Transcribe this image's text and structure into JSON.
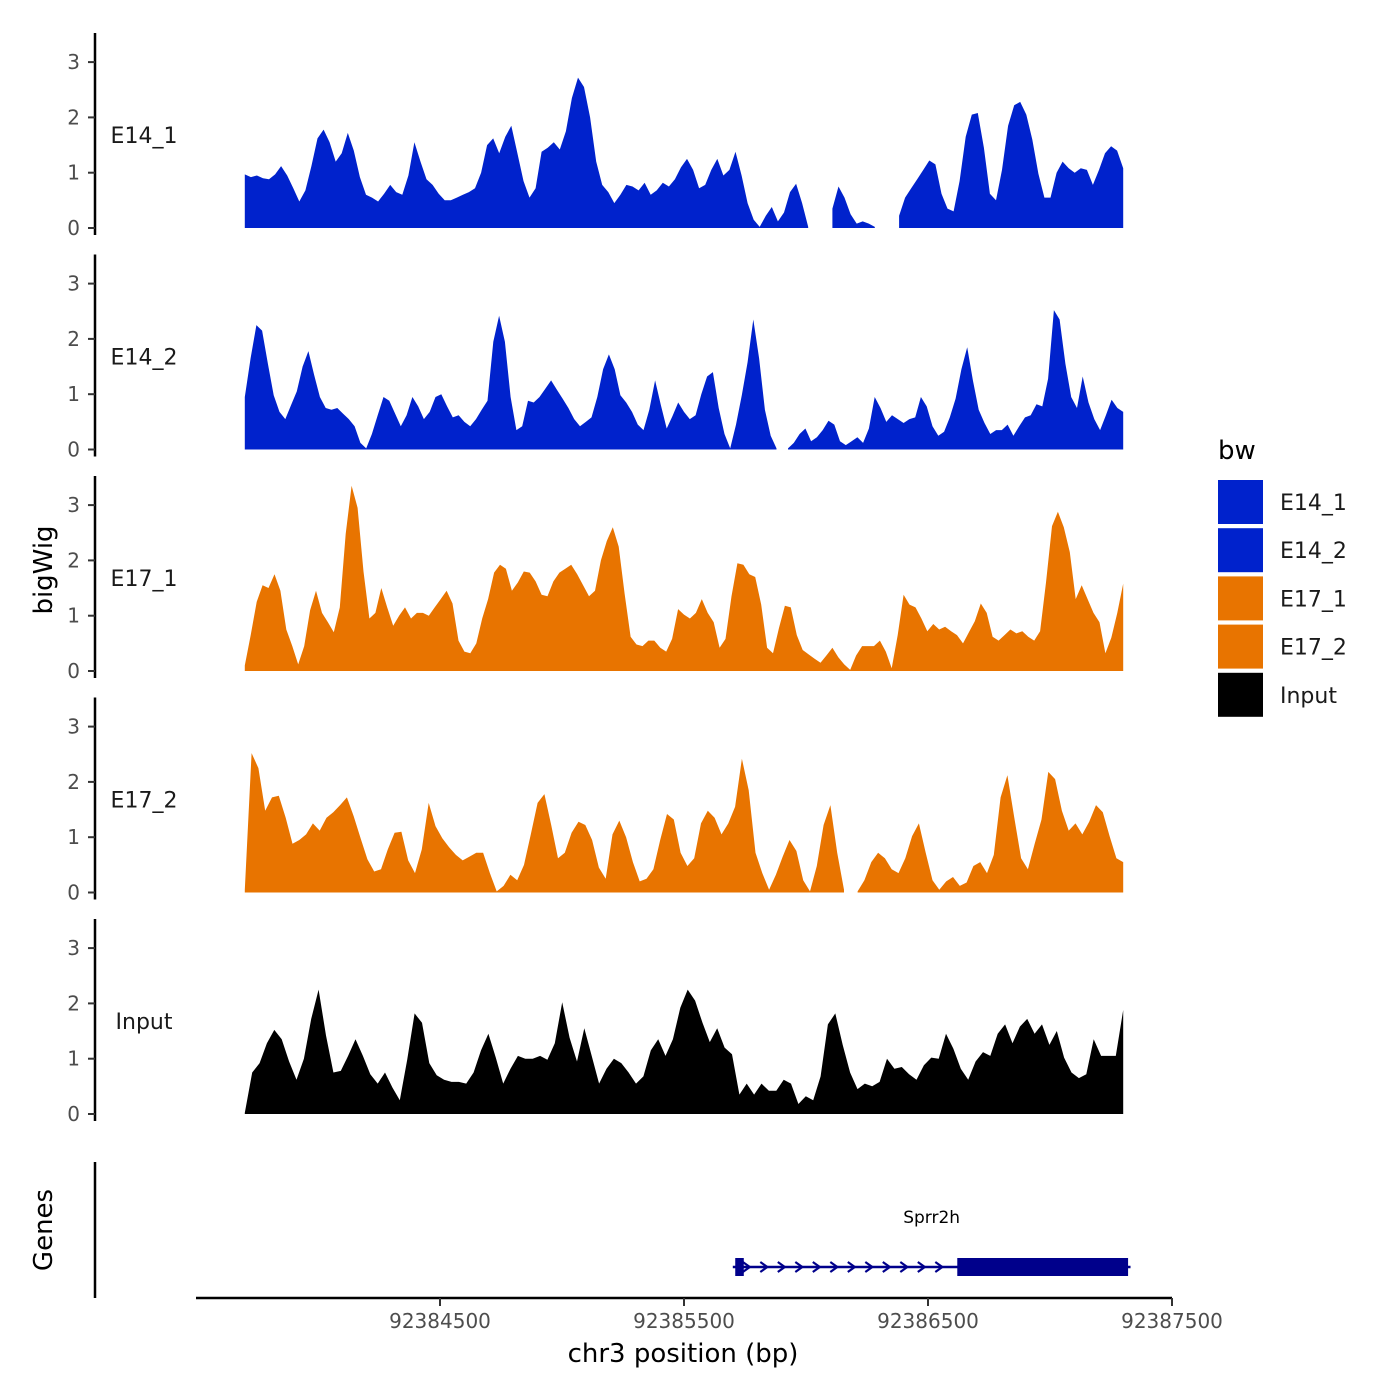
{
  "chart_data": {
    "type": "area",
    "title": "",
    "ylabel": "bigWig",
    "genes_label": "Genes",
    "xlabel": "chr3 position (bp)",
    "xlim": [
      92383500,
      92387500
    ],
    "x_ticks": [
      92384500,
      92385500,
      92386500,
      92387500
    ],
    "x_tick_labels": [
      "92384500",
      "92385500",
      "92386500",
      "92387500"
    ],
    "ylim": [
      0,
      3.5
    ],
    "y_ticks": [
      0,
      1,
      2,
      3
    ],
    "y_tick_labels": [
      "0",
      "1",
      "2",
      "3"
    ],
    "grid": false,
    "legend": {
      "title": "bw",
      "position": "right",
      "entries": [
        {
          "label": "E14_1",
          "color": "#0022CC"
        },
        {
          "label": "E14_2",
          "color": "#0022CC"
        },
        {
          "label": "E17_1",
          "color": "#E87400"
        },
        {
          "label": "E17_2",
          "color": "#E87400"
        },
        {
          "label": "Input",
          "color": "#000000"
        }
      ]
    },
    "series": [
      {
        "name": "E14_1",
        "color": "#0022CC",
        "x_start": 92383700,
        "x_end": 92387300,
        "values": [
          0.97,
          0.92,
          0.95,
          0.9,
          0.88,
          0.97,
          1.12,
          0.95,
          0.72,
          0.48,
          0.68,
          1.12,
          1.62,
          1.78,
          1.55,
          1.2,
          1.35,
          1.72,
          1.4,
          0.92,
          0.6,
          0.55,
          0.48,
          0.62,
          0.78,
          0.65,
          0.6,
          0.95,
          1.55,
          1.2,
          0.88,
          0.78,
          0.62,
          0.5,
          0.5,
          0.55,
          0.6,
          0.65,
          0.72,
          1.0,
          1.5,
          1.62,
          1.35,
          1.65,
          1.85,
          1.35,
          0.85,
          0.55,
          0.72,
          1.38,
          1.45,
          1.55,
          1.42,
          1.75,
          2.35,
          2.72,
          2.55,
          2.0,
          1.2,
          0.78,
          0.65,
          0.45,
          0.6,
          0.78,
          0.75,
          0.68,
          0.82,
          0.6,
          0.68,
          0.82,
          0.75,
          0.88,
          1.1,
          1.25,
          1.05,
          0.72,
          0.78,
          1.05,
          1.25,
          0.95,
          1.05,
          1.38,
          0.95,
          0.45,
          0.15,
          0.02,
          0.22,
          0.38,
          0.12,
          0.28,
          0.65,
          0.8,
          0.45,
          0.02,
          null,
          null,
          null,
          0.35,
          0.75,
          0.55,
          0.25,
          0.08,
          0.12,
          0.08,
          0.02,
          null,
          null,
          null,
          0.22,
          0.55,
          0.72,
          0.88,
          1.05,
          1.22,
          1.15,
          0.62,
          0.35,
          0.3,
          0.85,
          1.65,
          2.05,
          2.08,
          1.45,
          0.62,
          0.5,
          1.05,
          1.85,
          2.22,
          2.28,
          2.05,
          1.6,
          0.98,
          0.55,
          0.55,
          1.0,
          1.2,
          1.08,
          1.0,
          1.08,
          1.05,
          0.78,
          1.05,
          1.35,
          1.48,
          1.4,
          1.08
        ]
      },
      {
        "name": "E14_2",
        "color": "#0022CC",
        "x_start": 92383700,
        "x_end": 92387300,
        "values": [
          0.95,
          1.65,
          2.25,
          2.15,
          1.55,
          0.98,
          0.68,
          0.55,
          0.8,
          1.05,
          1.5,
          1.78,
          1.35,
          0.95,
          0.75,
          0.72,
          0.75,
          0.65,
          0.55,
          0.42,
          0.12,
          0.02,
          0.28,
          0.62,
          0.95,
          0.88,
          0.65,
          0.42,
          0.62,
          0.95,
          0.78,
          0.55,
          0.68,
          0.95,
          1.0,
          0.78,
          0.58,
          0.62,
          0.5,
          0.42,
          0.55,
          0.72,
          0.88,
          1.95,
          2.42,
          1.95,
          0.95,
          0.35,
          0.42,
          0.88,
          0.85,
          0.95,
          1.1,
          1.25,
          1.08,
          0.92,
          0.75,
          0.55,
          0.42,
          0.5,
          0.58,
          0.95,
          1.45,
          1.72,
          1.45,
          0.98,
          0.85,
          0.68,
          0.45,
          0.35,
          0.72,
          1.25,
          0.8,
          0.38,
          0.6,
          0.85,
          0.68,
          0.55,
          0.62,
          1.0,
          1.32,
          1.4,
          0.75,
          0.28,
          0.02,
          0.45,
          0.98,
          1.58,
          2.35,
          1.65,
          0.72,
          0.25,
          0.02,
          null,
          0.02,
          0.12,
          0.28,
          0.38,
          0.15,
          0.22,
          0.35,
          0.52,
          0.45,
          0.15,
          0.08,
          0.15,
          0.22,
          0.12,
          0.38,
          0.95,
          0.75,
          0.5,
          0.62,
          0.55,
          0.48,
          0.55,
          0.58,
          0.95,
          0.78,
          0.42,
          0.25,
          0.32,
          0.58,
          0.92,
          1.45,
          1.85,
          1.25,
          0.72,
          0.48,
          0.28,
          0.35,
          0.35,
          0.45,
          0.25,
          0.42,
          0.58,
          0.62,
          0.82,
          0.78,
          1.28,
          2.52,
          2.35,
          1.55,
          0.95,
          0.75,
          1.32,
          0.85,
          0.55,
          0.35,
          0.62,
          0.9,
          0.75,
          0.68
        ]
      },
      {
        "name": "E17_1",
        "color": "#E87400",
        "x_start": 92383700,
        "x_end": 92387300,
        "values": [
          0.1,
          0.65,
          1.25,
          1.55,
          1.5,
          1.75,
          1.45,
          0.75,
          0.45,
          0.12,
          0.45,
          1.1,
          1.45,
          1.05,
          0.88,
          0.7,
          1.15,
          2.48,
          3.35,
          2.95,
          1.8,
          0.95,
          1.05,
          1.5,
          1.15,
          0.82,
          1.0,
          1.15,
          0.95,
          1.05,
          1.05,
          1.0,
          1.15,
          1.3,
          1.45,
          1.22,
          0.55,
          0.35,
          0.32,
          0.5,
          0.95,
          1.3,
          1.78,
          1.92,
          1.85,
          1.45,
          1.6,
          1.8,
          1.78,
          1.62,
          1.38,
          1.35,
          1.62,
          1.78,
          1.85,
          1.92,
          1.75,
          1.55,
          1.35,
          1.45,
          2.0,
          2.35,
          2.6,
          2.25,
          1.4,
          0.62,
          0.48,
          0.45,
          0.55,
          0.55,
          0.42,
          0.35,
          0.58,
          1.12,
          1.02,
          0.95,
          1.05,
          1.3,
          1.05,
          0.88,
          0.42,
          0.58,
          1.35,
          1.95,
          1.92,
          1.75,
          1.7,
          1.2,
          0.42,
          0.32,
          0.78,
          1.18,
          1.15,
          0.65,
          0.38,
          0.3,
          0.22,
          0.15,
          0.28,
          0.42,
          0.25,
          0.12,
          0.02,
          0.28,
          0.45,
          0.45,
          0.45,
          0.55,
          0.35,
          0.05,
          0.65,
          1.38,
          1.2,
          1.15,
          0.95,
          0.72,
          0.85,
          0.75,
          0.8,
          0.72,
          0.65,
          0.5,
          0.7,
          0.9,
          1.22,
          1.05,
          0.62,
          0.55,
          0.65,
          0.75,
          0.68,
          0.72,
          0.62,
          0.55,
          0.72,
          1.6,
          2.62,
          2.88,
          2.6,
          2.15,
          1.3,
          1.55,
          1.3,
          1.05,
          0.88,
          0.32,
          0.6,
          1.05,
          1.58
        ]
      },
      {
        "name": "E17_2",
        "color": "#E87400",
        "x_start": 92383700,
        "x_end": 92387300,
        "values": [
          0.05,
          2.52,
          2.25,
          1.48,
          1.72,
          1.75,
          1.35,
          0.88,
          0.95,
          1.05,
          1.25,
          1.12,
          1.35,
          1.45,
          1.58,
          1.72,
          1.38,
          0.98,
          0.6,
          0.38,
          0.42,
          0.78,
          1.08,
          1.1,
          0.58,
          0.35,
          0.78,
          1.62,
          1.2,
          0.98,
          0.82,
          0.68,
          0.58,
          0.65,
          0.72,
          0.72,
          0.35,
          0.02,
          0.12,
          0.32,
          0.22,
          0.5,
          1.05,
          1.62,
          1.78,
          1.22,
          0.62,
          0.72,
          1.08,
          1.28,
          1.22,
          0.95,
          0.45,
          0.25,
          1.05,
          1.3,
          1.0,
          0.55,
          0.2,
          0.25,
          0.42,
          0.95,
          1.42,
          1.32,
          0.72,
          0.48,
          0.62,
          1.25,
          1.48,
          1.35,
          1.05,
          1.25,
          1.55,
          2.42,
          1.85,
          0.72,
          0.35,
          0.05,
          0.32,
          0.65,
          0.95,
          0.75,
          0.22,
          0.02,
          0.48,
          1.22,
          1.58,
          0.72,
          0.05,
          null,
          0.02,
          0.22,
          0.55,
          0.72,
          0.62,
          0.42,
          0.35,
          0.62,
          1.02,
          1.25,
          0.72,
          0.22,
          0.05,
          0.2,
          0.28,
          0.12,
          0.18,
          0.48,
          0.55,
          0.35,
          0.68,
          1.72,
          2.12,
          1.35,
          0.62,
          0.42,
          0.88,
          1.32,
          2.18,
          2.05,
          1.48,
          1.12,
          1.25,
          1.05,
          1.28,
          1.58,
          1.45,
          1.02,
          0.62,
          0.55
        ]
      },
      {
        "name": "Input",
        "color": "#000000",
        "x_start": 92383700,
        "x_end": 92387300,
        "values": [
          0.02,
          0.75,
          0.92,
          1.28,
          1.52,
          1.35,
          0.95,
          0.62,
          1.0,
          1.72,
          2.25,
          1.42,
          0.75,
          0.78,
          1.05,
          1.35,
          1.05,
          0.72,
          0.55,
          0.75,
          0.48,
          0.25,
          0.98,
          1.82,
          1.65,
          0.92,
          0.7,
          0.62,
          0.58,
          0.58,
          0.55,
          0.75,
          1.15,
          1.45,
          1.02,
          0.55,
          0.82,
          1.05,
          1.0,
          1.0,
          1.05,
          0.98,
          1.28,
          2.02,
          1.38,
          0.95,
          1.55,
          1.05,
          0.55,
          0.82,
          1.0,
          0.92,
          0.75,
          0.55,
          0.68,
          1.15,
          1.35,
          1.05,
          1.35,
          1.92,
          2.25,
          2.05,
          1.65,
          1.3,
          1.55,
          1.2,
          1.08,
          0.35,
          0.55,
          0.35,
          0.55,
          0.42,
          0.42,
          0.62,
          0.55,
          0.18,
          0.32,
          0.25,
          0.68,
          1.62,
          1.82,
          1.25,
          0.75,
          0.45,
          0.55,
          0.5,
          0.58,
          1.0,
          0.82,
          0.85,
          0.72,
          0.62,
          0.88,
          1.02,
          1.0,
          1.45,
          1.18,
          0.82,
          0.62,
          0.95,
          1.12,
          1.05,
          1.45,
          1.62,
          1.28,
          1.58,
          1.72,
          1.45,
          1.62,
          1.25,
          1.5,
          1.02,
          0.75,
          0.65,
          0.72,
          1.35,
          1.05,
          1.05,
          1.05,
          1.88
        ]
      }
    ],
    "genes": [
      {
        "name": "Sprr2h",
        "color": "#00008B",
        "strand": "+",
        "start": 92385700,
        "end": 92387330,
        "exons": [
          [
            92385710,
            92385745
          ],
          [
            92386620,
            92387320
          ]
        ]
      }
    ]
  }
}
